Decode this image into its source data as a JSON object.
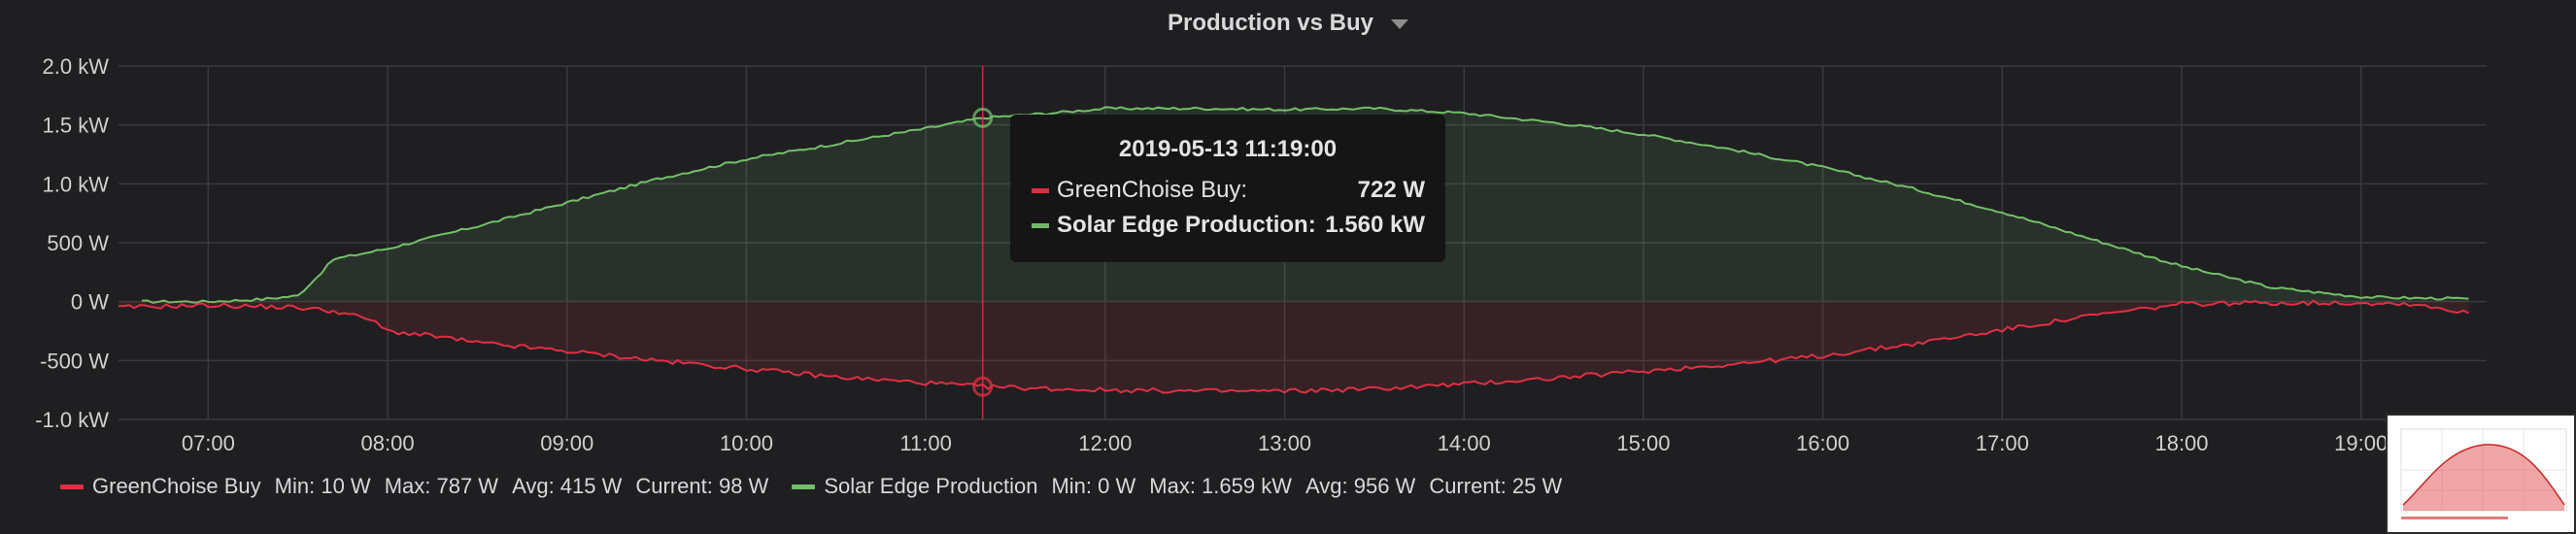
{
  "panel": {
    "title": "Production vs Buy"
  },
  "tooltip": {
    "time": "2019-05-13 11:19:00",
    "rows": [
      {
        "label": "GreenChoise Buy:",
        "value": "722 W",
        "color": "#e02f44",
        "bold": false
      },
      {
        "label": "Solar Edge Production:",
        "value": "1.560 kW",
        "color": "#73bf69",
        "bold": true
      }
    ]
  },
  "legend": {
    "items": [
      {
        "name": "GreenChoise Buy",
        "color": "#e02f44",
        "min": "Min: 10 W",
        "max": "Max: 787 W",
        "avg": "Avg: 415 W",
        "current": "Current: 98 W"
      },
      {
        "name": "Solar Edge Production",
        "color": "#73bf69",
        "min": "Min: 0 W",
        "max": "Max: 1.659 kW",
        "avg": "Avg: 956 W",
        "current": "Current: 25 W"
      }
    ]
  },
  "chart_data": {
    "type": "area",
    "title": "Production vs Buy",
    "x_unit": "hour of day",
    "xlim": [
      6.5,
      19.7
    ],
    "ylim": [
      -1000,
      2000
    ],
    "y_ticks": [
      2000,
      1500,
      1000,
      500,
      0,
      -500,
      -1000
    ],
    "y_tick_labels": [
      "2.0 kW",
      "1.5 kW",
      "1.0 kW",
      "500 W",
      "0 W",
      "-500 W",
      "-1.0 kW"
    ],
    "x_ticks": [
      7,
      8,
      9,
      10,
      11,
      12,
      13,
      14,
      15,
      16,
      17,
      18,
      19
    ],
    "x_tick_labels": [
      "07:00",
      "08:00",
      "09:00",
      "10:00",
      "11:00",
      "12:00",
      "13:00",
      "14:00",
      "15:00",
      "16:00",
      "17:00",
      "18:00",
      "19:00"
    ],
    "grid": true,
    "legend_position": "bottom",
    "crosshair_x": 11.317,
    "series": [
      {
        "name": "Solar Edge Production",
        "color": "#73bf69",
        "points": [
          [
            6.63,
            0
          ],
          [
            7.0,
            0
          ],
          [
            7.3,
            20
          ],
          [
            7.5,
            50
          ],
          [
            7.6,
            200
          ],
          [
            7.7,
            360
          ],
          [
            8.0,
            450
          ],
          [
            8.5,
            640
          ],
          [
            9.0,
            840
          ],
          [
            9.5,
            1040
          ],
          [
            10.0,
            1210
          ],
          [
            10.5,
            1340
          ],
          [
            11.0,
            1470
          ],
          [
            11.317,
            1560
          ],
          [
            11.7,
            1600
          ],
          [
            12.0,
            1640
          ],
          [
            12.5,
            1640
          ],
          [
            13.0,
            1630
          ],
          [
            13.5,
            1640
          ],
          [
            14.0,
            1600
          ],
          [
            14.5,
            1520
          ],
          [
            15.0,
            1420
          ],
          [
            15.5,
            1290
          ],
          [
            16.0,
            1140
          ],
          [
            16.5,
            960
          ],
          [
            17.0,
            760
          ],
          [
            17.5,
            530
          ],
          [
            18.0,
            300
          ],
          [
            18.5,
            120
          ],
          [
            19.0,
            40
          ],
          [
            19.3,
            30
          ],
          [
            19.6,
            25
          ]
        ]
      },
      {
        "name": "GreenChoise Buy",
        "color": "#e02f44",
        "points": [
          [
            6.5,
            -50
          ],
          [
            7.0,
            -30
          ],
          [
            7.5,
            -50
          ],
          [
            7.7,
            -80
          ],
          [
            7.9,
            -150
          ],
          [
            8.0,
            -250
          ],
          [
            8.3,
            -300
          ],
          [
            8.5,
            -350
          ],
          [
            9.0,
            -420
          ],
          [
            9.5,
            -500
          ],
          [
            10.0,
            -570
          ],
          [
            10.5,
            -640
          ],
          [
            11.0,
            -690
          ],
          [
            11.317,
            -722
          ],
          [
            11.7,
            -740
          ],
          [
            12.0,
            -750
          ],
          [
            12.5,
            -760
          ],
          [
            13.0,
            -760
          ],
          [
            13.5,
            -740
          ],
          [
            14.0,
            -700
          ],
          [
            14.5,
            -650
          ],
          [
            15.0,
            -590
          ],
          [
            15.5,
            -530
          ],
          [
            16.0,
            -460
          ],
          [
            16.5,
            -360
          ],
          [
            17.0,
            -240
          ],
          [
            17.5,
            -120
          ],
          [
            18.0,
            -20
          ],
          [
            18.5,
            -10
          ],
          [
            19.0,
            -10
          ],
          [
            19.3,
            -20
          ],
          [
            19.6,
            -98
          ]
        ]
      }
    ]
  }
}
